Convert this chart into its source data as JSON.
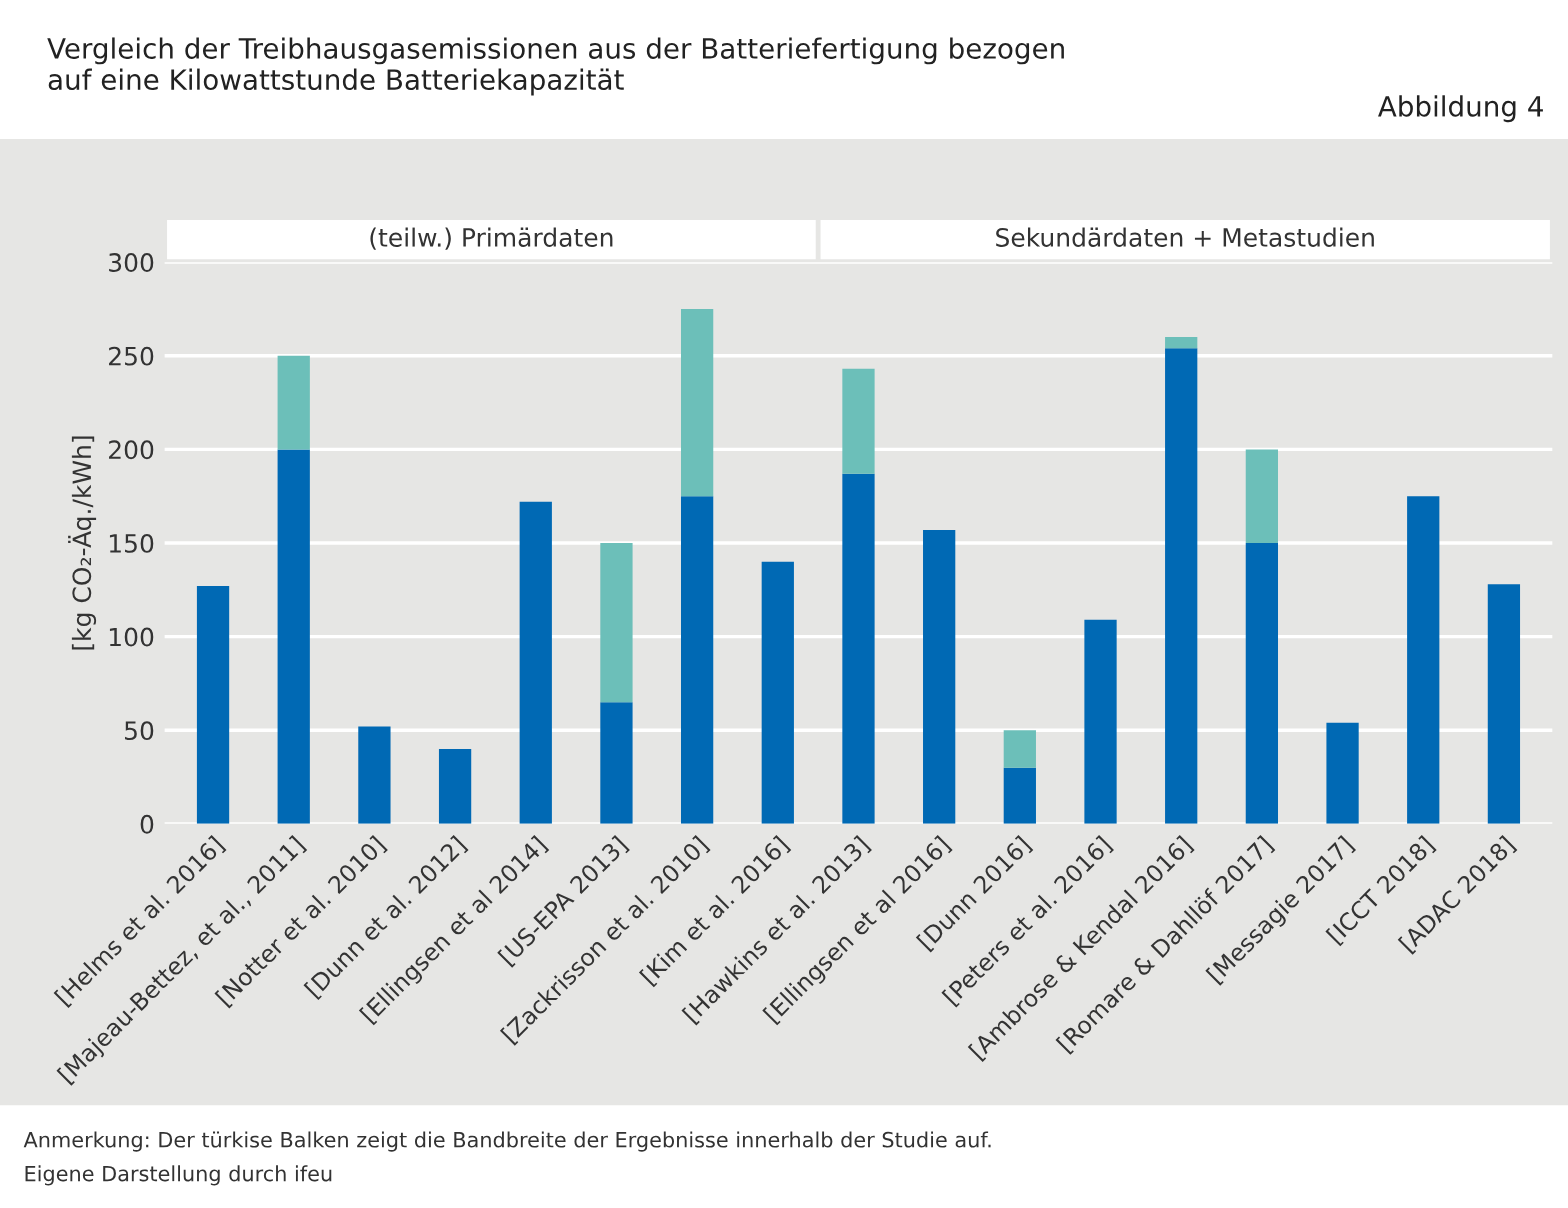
{
  "chart_data": {
    "type": "bar",
    "stacked": true,
    "title": "Vergleich der Treibhausgasemissionen aus der Batteriefertigung bezogen\nauf eine Kilowattstunde Batteriekapazität",
    "subtitle": "Abbildung 4",
    "ylabel": "[kg CO₂-Äq./kWh]",
    "categories": [
      "[Helms et al. 2016]",
      "[Majeau-Bettez, et al., 2011]",
      "[Notter et al. 2010]",
      "[Dunn et al. 2012]",
      "[Ellingsen et al 2014]",
      "[US-EPA 2013]",
      "[Zackrisson et al. 2010]",
      "[Kim et al. 2016]",
      "[Hawkins et al. 2013]",
      "[Ellingsen et al 2016]",
      "[Dunn 2016]",
      "[Peters et al. 2016]",
      "[Ambrose & Kendal 2016]",
      "[Romare & Dahllöf 2017]",
      "[Messagie 2017]",
      "[ICCT 2018]",
      "[ADAC 2018]"
    ],
    "series": [
      {
        "color": "#0069b4",
        "values": [
          127,
          200,
          52,
          40,
          172,
          65,
          175,
          140,
          187,
          157,
          30,
          109,
          254,
          150,
          54,
          175,
          128
        ]
      },
      {
        "color": "#6cbfb9",
        "values": [
          null,
          50,
          null,
          null,
          null,
          85,
          100,
          null,
          56,
          null,
          20,
          null,
          6,
          50,
          null,
          null,
          null
        ]
      }
    ],
    "ylim": [
      0,
      300
    ],
    "yticks": [
      0,
      50,
      100,
      150,
      200,
      250,
      300
    ],
    "grid": "y",
    "annotations": [
      "(teilw.) Primärdaten",
      "Sekundärdaten + Metastudien",
      "Anmerkung: Der türkise Balken zeigt die Bandbreite der Ergebnisse innerhalb der Studie auf.",
      "Eigene Darstellung durch ifeu"
    ]
  }
}
